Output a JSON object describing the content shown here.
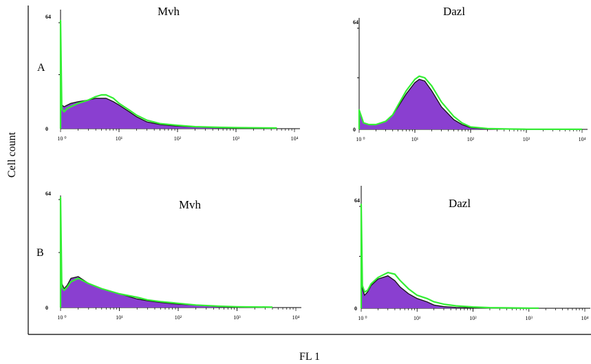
{
  "figure": {
    "ylabel": "Cell count",
    "xlabel": "FL 1",
    "rows": [
      "A",
      "B"
    ]
  },
  "colors": {
    "fill": "#8a3fd0",
    "black_trace": "#1a1a1a",
    "green_trace": "#33ee33"
  },
  "chart_data": [
    {
      "type": "area",
      "id": "A-mvh",
      "title": "Mvh",
      "x_scale": "log",
      "xlim": [
        1,
        10000
      ],
      "ylim": [
        0,
        64
      ],
      "xticks": [
        "10 ⁰",
        "10¹",
        "10²",
        "10³",
        "10⁴"
      ],
      "yticks": [
        "64",
        "0"
      ],
      "series": [
        {
          "role": "filled",
          "x": [
            1,
            1.05,
            1.15,
            1.3,
            1.5,
            2,
            3,
            4,
            5,
            6,
            8,
            10,
            15,
            20,
            30,
            50,
            100,
            200,
            500,
            1000,
            5000
          ],
          "y": [
            30,
            14,
            13,
            14,
            15,
            16,
            17,
            18,
            18,
            18,
            16,
            14,
            10,
            7,
            4,
            2.5,
            1.5,
            1,
            0.5,
            0.3,
            0.2
          ]
        },
        {
          "role": "outline",
          "x": [
            1,
            1.05,
            1.15,
            1.3,
            1.5,
            2,
            3,
            4,
            5,
            6,
            8,
            10,
            15,
            20,
            30,
            50,
            100,
            200,
            500,
            1000,
            5000
          ],
          "y": [
            64,
            12,
            10,
            12,
            13,
            15,
            17,
            19,
            20,
            20,
            18,
            15,
            11,
            8,
            5,
            3,
            2,
            1.2,
            0.8,
            0.6,
            0.4
          ]
        }
      ]
    },
    {
      "type": "area",
      "id": "A-dazl",
      "title": "Dazl",
      "x_scale": "log",
      "xlim": [
        1,
        10000
      ],
      "ylim": [
        0,
        64
      ],
      "xticks": [
        "10 ⁰",
        "10¹",
        "10²",
        "10³",
        "10⁴"
      ],
      "yticks": [
        "64",
        "0"
      ],
      "series": [
        {
          "role": "filled",
          "x": [
            1,
            1.2,
            1.5,
            2,
            3,
            4,
            5,
            7,
            10,
            12,
            15,
            20,
            30,
            50,
            70,
            100,
            200,
            500,
            1000,
            10000
          ],
          "y": [
            12,
            4,
            3,
            3,
            5,
            9,
            14,
            22,
            29,
            31,
            30,
            24,
            14,
            6,
            3,
            1,
            0.3,
            0.1,
            0,
            0
          ]
        },
        {
          "role": "outline",
          "x": [
            1,
            1.2,
            1.5,
            2,
            3,
            4,
            5,
            7,
            10,
            12,
            15,
            20,
            30,
            50,
            70,
            100,
            200,
            500,
            1000,
            10000
          ],
          "y": [
            12,
            4,
            3,
            3,
            5,
            9,
            15,
            24,
            31,
            33,
            32,
            27,
            17,
            8,
            4,
            1.5,
            0.5,
            0.2,
            0.1,
            0.05
          ]
        }
      ]
    },
    {
      "type": "area",
      "id": "B-mvh",
      "title": "Mvh",
      "x_scale": "log",
      "xlim": [
        1,
        10000
      ],
      "ylim": [
        0,
        64
      ],
      "xticks": [
        "10 ⁰",
        "10¹",
        "10²",
        "10³",
        "10⁴"
      ],
      "yticks": [
        "64",
        "0"
      ],
      "series": [
        {
          "role": "filled",
          "x": [
            1,
            1.05,
            1.15,
            1.3,
            1.5,
            2,
            3,
            5,
            10,
            20,
            30,
            50,
            100,
            200,
            500,
            1000,
            4000
          ],
          "y": [
            40,
            14,
            11,
            13,
            17,
            18,
            14,
            11,
            8,
            5,
            4,
            3,
            2,
            1.5,
            0.5,
            0.2,
            0.1
          ]
        },
        {
          "role": "outline",
          "x": [
            1,
            1.05,
            1.15,
            1.3,
            1.5,
            2,
            3,
            5,
            10,
            20,
            30,
            50,
            100,
            200,
            500,
            1000,
            4000
          ],
          "y": [
            64,
            12,
            10,
            12,
            15,
            17,
            14,
            11,
            8,
            6,
            4.5,
            3.5,
            2.5,
            1.5,
            0.8,
            0.5,
            0.3
          ]
        }
      ]
    },
    {
      "type": "area",
      "id": "B-dazl",
      "title": "Dazl",
      "x_scale": "log",
      "xlim": [
        1,
        10000
      ],
      "ylim": [
        0,
        64
      ],
      "xticks": [
        "10 ⁰",
        "10¹",
        "10²",
        "10³",
        "10⁴"
      ],
      "yticks": [
        "64",
        "0"
      ],
      "series": [
        {
          "role": "filled",
          "x": [
            1,
            1.05,
            1.15,
            1.3,
            1.5,
            2,
            3,
            4,
            5,
            7,
            10,
            15,
            20,
            30,
            50,
            100,
            200,
            500,
            1000,
            1500
          ],
          "y": [
            25,
            12,
            8,
            10,
            14,
            18,
            20,
            17,
            13,
            9,
            6,
            4,
            2,
            1,
            0.5,
            0.2,
            0.1,
            0,
            0,
            0
          ]
        },
        {
          "role": "outline",
          "x": [
            1,
            1.05,
            1.15,
            1.3,
            1.5,
            2,
            3,
            4,
            5,
            7,
            10,
            15,
            20,
            30,
            50,
            100,
            200,
            500,
            1000,
            1500
          ],
          "y": [
            64,
            14,
            10,
            11,
            15,
            19,
            22,
            21,
            17,
            12,
            8,
            6,
            4,
            2.5,
            1.5,
            0.8,
            0.4,
            0.2,
            0.1,
            0.1
          ]
        }
      ]
    }
  ]
}
